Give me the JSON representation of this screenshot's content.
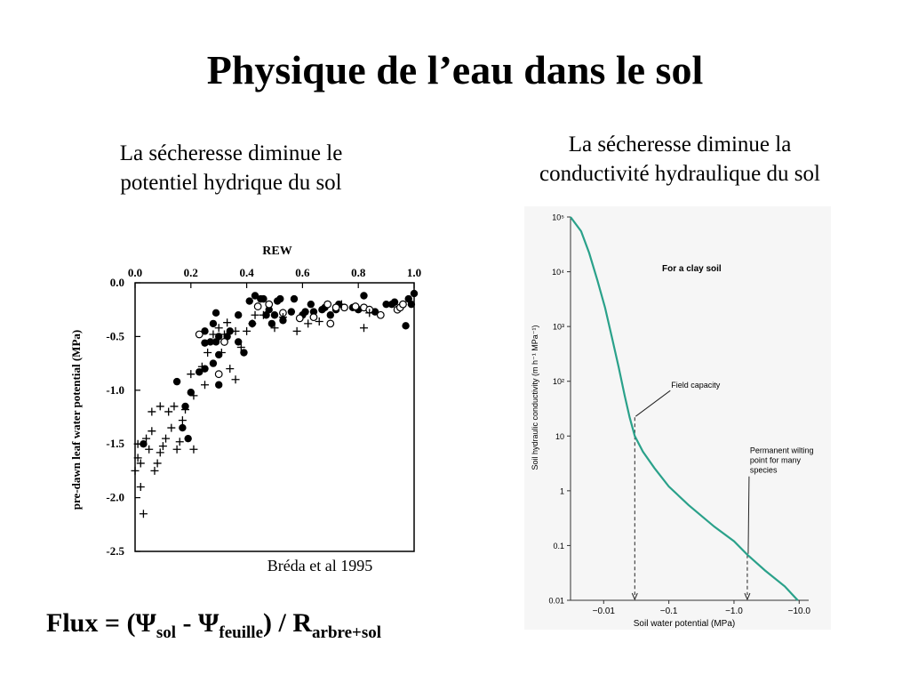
{
  "title": "Physique de l’eau dans le sol",
  "left_caption_line1": "La sécheresse diminue le",
  "left_caption_line2": "potentiel hydrique du sol",
  "right_caption_line1": "La sécheresse diminue la",
  "right_caption_line2": "conductivité hydraulique du sol",
  "citation": "Bréda et al 1995",
  "formula": {
    "prefix": "Flux = (Ψ",
    "sub1": "sol",
    "mid1": " - Ψ",
    "sub2": "feuille",
    "mid2": ") / R",
    "sub3": "arbre+sol"
  },
  "chart_data": [
    {
      "type": "scatter",
      "title": "",
      "xlabel": "REW",
      "ylabel": "pre-dawn leaf water potential (MPa)",
      "xlim": [
        0.0,
        1.0
      ],
      "ylim": [
        -2.5,
        0.0
      ],
      "x_ticks": [
        "0.0",
        "0.2",
        "0.4",
        "0.6",
        "0.8",
        "1.0"
      ],
      "y_ticks": [
        "0.0",
        "-0.5",
        "-1.0",
        "-1.5",
        "-2.0",
        "-2.5"
      ],
      "x_axis_position": "top",
      "grid": false,
      "series": [
        {
          "marker": "filled-circle",
          "points": [
            [
              0.03,
              -1.5
            ],
            [
              0.15,
              -0.92
            ],
            [
              0.18,
              -1.15
            ],
            [
              0.17,
              -1.35
            ],
            [
              0.19,
              -1.45
            ],
            [
              0.2,
              -1.02
            ],
            [
              0.23,
              -0.83
            ],
            [
              0.25,
              -0.56
            ],
            [
              0.25,
              -0.45
            ],
            [
              0.25,
              -0.8
            ],
            [
              0.27,
              -0.55
            ],
            [
              0.28,
              -0.38
            ],
            [
              0.28,
              -0.75
            ],
            [
              0.29,
              -0.28
            ],
            [
              0.29,
              -0.55
            ],
            [
              0.3,
              -0.5
            ],
            [
              0.3,
              -0.67
            ],
            [
              0.3,
              -0.95
            ],
            [
              0.33,
              -0.5
            ],
            [
              0.34,
              -0.45
            ],
            [
              0.37,
              -0.55
            ],
            [
              0.37,
              -0.3
            ],
            [
              0.39,
              -0.65
            ],
            [
              0.41,
              -0.17
            ],
            [
              0.42,
              -0.38
            ],
            [
              0.43,
              -0.12
            ],
            [
              0.45,
              -0.15
            ],
            [
              0.46,
              -0.15
            ],
            [
              0.47,
              -0.3
            ],
            [
              0.48,
              -0.25
            ],
            [
              0.49,
              -0.38
            ],
            [
              0.5,
              -0.3
            ],
            [
              0.51,
              -0.17
            ],
            [
              0.52,
              -0.15
            ],
            [
              0.53,
              -0.35
            ],
            [
              0.56,
              -0.27
            ],
            [
              0.57,
              -0.15
            ],
            [
              0.6,
              -0.3
            ],
            [
              0.61,
              -0.27
            ],
            [
              0.63,
              -0.2
            ],
            [
              0.64,
              -0.27
            ],
            [
              0.67,
              -0.25
            ],
            [
              0.68,
              -0.23
            ],
            [
              0.7,
              -0.3
            ],
            [
              0.72,
              -0.25
            ],
            [
              0.73,
              -0.2
            ],
            [
              0.78,
              -0.23
            ],
            [
              0.8,
              -0.25
            ],
            [
              0.82,
              -0.12
            ],
            [
              0.86,
              -0.27
            ],
            [
              0.9,
              -0.2
            ],
            [
              0.92,
              -0.2
            ],
            [
              0.93,
              -0.18
            ],
            [
              0.96,
              -0.2
            ],
            [
              0.97,
              -0.4
            ],
            [
              0.98,
              -0.15
            ],
            [
              0.99,
              -0.2
            ],
            [
              1.0,
              -0.1
            ]
          ]
        },
        {
          "marker": "open-circle",
          "points": [
            [
              0.23,
              -0.48
            ],
            [
              0.3,
              -0.85
            ],
            [
              0.32,
              -0.55
            ],
            [
              0.44,
              -0.22
            ],
            [
              0.48,
              -0.2
            ],
            [
              0.53,
              -0.28
            ],
            [
              0.59,
              -0.33
            ],
            [
              0.64,
              -0.32
            ],
            [
              0.69,
              -0.2
            ],
            [
              0.7,
              -0.38
            ],
            [
              0.72,
              -0.23
            ],
            [
              0.75,
              -0.23
            ],
            [
              0.79,
              -0.22
            ],
            [
              0.82,
              -0.23
            ],
            [
              0.84,
              -0.25
            ],
            [
              0.88,
              -0.3
            ],
            [
              0.94,
              -0.25
            ],
            [
              0.95,
              -0.23
            ],
            [
              0.96,
              -0.2
            ]
          ]
        },
        {
          "marker": "plus",
          "points": [
            [
              0.0,
              -1.75
            ],
            [
              0.01,
              -1.5
            ],
            [
              0.01,
              -1.63
            ],
            [
              0.02,
              -1.68
            ],
            [
              0.02,
              -1.9
            ],
            [
              0.03,
              -2.15
            ],
            [
              0.04,
              -1.45
            ],
            [
              0.05,
              -1.55
            ],
            [
              0.06,
              -1.2
            ],
            [
              0.06,
              -1.38
            ],
            [
              0.07,
              -1.75
            ],
            [
              0.08,
              -1.68
            ],
            [
              0.09,
              -1.15
            ],
            [
              0.09,
              -1.58
            ],
            [
              0.1,
              -1.52
            ],
            [
              0.11,
              -1.45
            ],
            [
              0.12,
              -1.2
            ],
            [
              0.13,
              -1.35
            ],
            [
              0.14,
              -1.15
            ],
            [
              0.15,
              -1.55
            ],
            [
              0.16,
              -1.48
            ],
            [
              0.17,
              -1.28
            ],
            [
              0.18,
              -1.18
            ],
            [
              0.2,
              -0.85
            ],
            [
              0.21,
              -1.55
            ],
            [
              0.21,
              -1.05
            ],
            [
              0.24,
              -0.78
            ],
            [
              0.25,
              -0.95
            ],
            [
              0.26,
              -0.65
            ],
            [
              0.28,
              -0.48
            ],
            [
              0.3,
              -0.42
            ],
            [
              0.31,
              -0.65
            ],
            [
              0.32,
              -0.48
            ],
            [
              0.33,
              -0.37
            ],
            [
              0.34,
              -0.8
            ],
            [
              0.36,
              -0.9
            ],
            [
              0.36,
              -0.45
            ],
            [
              0.38,
              -0.6
            ],
            [
              0.4,
              -0.45
            ],
            [
              0.42,
              -0.38
            ],
            [
              0.43,
              -0.3
            ],
            [
              0.46,
              -0.3
            ],
            [
              0.5,
              -0.42
            ],
            [
              0.53,
              -0.32
            ],
            [
              0.58,
              -0.45
            ],
            [
              0.62,
              -0.38
            ],
            [
              0.66,
              -0.36
            ],
            [
              0.74,
              -0.2
            ],
            [
              0.82,
              -0.42
            ],
            [
              0.84,
              -0.28
            ]
          ]
        }
      ]
    },
    {
      "type": "line",
      "title": "",
      "annotation_main": "For a clay soil",
      "xlabel": "Soil water potential (MPa)",
      "ylabel": "Soil hydraulic conductivity (m h⁻¹ MPa⁻¹)",
      "x_ticks": [
        "−0.01",
        "−0.1",
        "−1.0",
        "−10.0"
      ],
      "y_tick_labels": {
        "y1e5": "10⁵",
        "y1e4": "10⁴",
        "y1e3": "10³",
        "y1e2": "10²",
        "y10": "10",
        "y1": "1",
        "y01": "0.1",
        "y001": "0.01"
      },
      "x_scale": "log",
      "y_scale": "log",
      "x_range": [
        0.0031,
        14
      ],
      "y_range": [
        0.01,
        100000
      ],
      "points": [
        [
          0.0031,
          100000
        ],
        [
          0.0045,
          55000
        ],
        [
          0.006,
          22000
        ],
        [
          0.008,
          7000
        ],
        [
          0.0105,
          2200
        ],
        [
          0.0135,
          600
        ],
        [
          0.017,
          180
        ],
        [
          0.021,
          55
        ],
        [
          0.025,
          22
        ],
        [
          0.03,
          10
        ],
        [
          0.04,
          5.2
        ],
        [
          0.06,
          2.6
        ],
        [
          0.1,
          1.2
        ],
        [
          0.2,
          0.55
        ],
        [
          0.5,
          0.22
        ],
        [
          1,
          0.12
        ],
        [
          1.6,
          0.068
        ],
        [
          3,
          0.035
        ],
        [
          6,
          0.018
        ],
        [
          9.5,
          0.01
        ]
      ],
      "annotations": [
        {
          "label_line1": "Field capacity",
          "label_line2": "",
          "label_line3": "",
          "x": 0.03,
          "y": 22
        },
        {
          "label_line1": "Permanent wilting",
          "label_line2": "point for many",
          "label_line3": "species",
          "x": 1.6,
          "y": 0.068
        }
      ]
    }
  ]
}
